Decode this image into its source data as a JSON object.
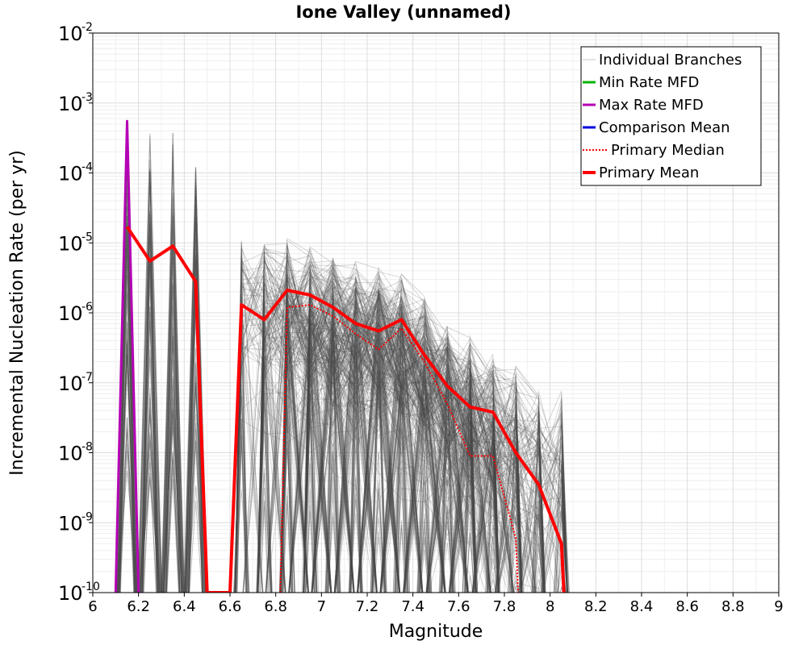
{
  "chart_data": {
    "type": "line",
    "title": "Ione Valley (unnamed)",
    "xlabel": "Magnitude",
    "ylabel": "Incremental Nucleation Rate (per yr)",
    "xlim": [
      6,
      9
    ],
    "ylim_log10": [
      -10,
      -2
    ],
    "grid": true,
    "legend_position": "top-right",
    "x_ticks": [
      "6",
      "6.2",
      "6.4",
      "6.6",
      "6.8",
      "7",
      "7.2",
      "7.4",
      "7.6",
      "7.8",
      "8",
      "8.2",
      "8.4",
      "8.6",
      "8.8",
      "9"
    ],
    "y_ticks": [
      {
        "base": "10",
        "exp": "-10"
      },
      {
        "base": "10",
        "exp": "-9"
      },
      {
        "base": "10",
        "exp": "-8"
      },
      {
        "base": "10",
        "exp": "-7"
      },
      {
        "base": "10",
        "exp": "-6"
      },
      {
        "base": "10",
        "exp": "-5"
      },
      {
        "base": "10",
        "exp": "-4"
      },
      {
        "base": "10",
        "exp": "-3"
      },
      {
        "base": "10",
        "exp": "-2"
      }
    ],
    "legend": [
      {
        "label": "Individual Branches",
        "color": "#c8c8c8",
        "style": "solid"
      },
      {
        "label": "Min Rate MFD",
        "color": "#00b400",
        "style": "solid"
      },
      {
        "label": "Max Rate MFD",
        "color": "#b400b4",
        "style": "solid"
      },
      {
        "label": "Comparison Mean",
        "color": "#0000e0",
        "style": "solid"
      },
      {
        "label": "Primary Median",
        "color": "#ff0000",
        "style": "dotted"
      },
      {
        "label": "Primary Mean",
        "color": "#ff0000",
        "style": "thick"
      }
    ],
    "branch_color": "#4a4a4a",
    "branch_spikes": [
      {
        "x": 6.15,
        "y_max": 0.00055
      },
      {
        "x": 6.25,
        "y_max": 0.0004
      },
      {
        "x": 6.35,
        "y_max": 0.0004
      },
      {
        "x": 6.45,
        "y_max": 0.0002
      }
    ],
    "branch_envelope": {
      "x": [
        6.65,
        6.75,
        6.85,
        6.95,
        7.05,
        7.15,
        7.25,
        7.35,
        7.45,
        7.55,
        7.65,
        7.75,
        7.85,
        7.95,
        8.05
      ],
      "upper": [
        2e-05,
        1.5e-05,
        1.3e-05,
        1e-05,
        8e-06,
        6e-06,
        5e-06,
        4e-06,
        2e-06,
        8e-07,
        5e-07,
        3e-07,
        2e-07,
        1.5e-07,
        1.2e-07
      ]
    },
    "series": [
      {
        "name": "Max Rate MFD",
        "color": "#b400b4",
        "x": [
          6.1,
          6.15,
          6.2
        ],
        "y": [
          1e-10,
          0.00055,
          1e-10
        ]
      },
      {
        "name": "Comparison Mean",
        "color": "#0000e0",
        "x": [
          6.65,
          6.75
        ],
        "y": [
          1.3e-06,
          8e-07
        ]
      },
      {
        "name": "Primary Median",
        "color": "#ff0000",
        "x": [
          6.82,
          6.85,
          6.95,
          7.05,
          7.15,
          7.25,
          7.35,
          7.45,
          7.55,
          7.65,
          7.75,
          7.85,
          7.86
        ],
        "y": [
          1e-10,
          1.2e-06,
          1.3e-06,
          9e-07,
          5e-07,
          3e-07,
          6e-07,
          2e-07,
          5e-08,
          9e-09,
          9e-09,
          6e-10,
          1e-10
        ]
      },
      {
        "name": "Primary Mean",
        "color": "#ff0000",
        "x": [
          6.15,
          6.25,
          6.35,
          6.45,
          6.5,
          6.6,
          6.65,
          6.75,
          6.85,
          6.95,
          7.05,
          7.15,
          7.25,
          7.35,
          7.45,
          7.55,
          7.65,
          7.75,
          7.85,
          7.95,
          8.05,
          8.06
        ],
        "y": [
          1.7e-05,
          5.5e-06,
          9e-06,
          2.8e-06,
          1e-10,
          1e-10,
          1.3e-06,
          8e-07,
          2.1e-06,
          1.8e-06,
          1.2e-06,
          7e-07,
          5.5e-07,
          8e-07,
          2.5e-07,
          9e-08,
          4.5e-08,
          3.8e-08,
          1e-08,
          3.5e-09,
          5e-10,
          1e-10
        ]
      }
    ]
  }
}
